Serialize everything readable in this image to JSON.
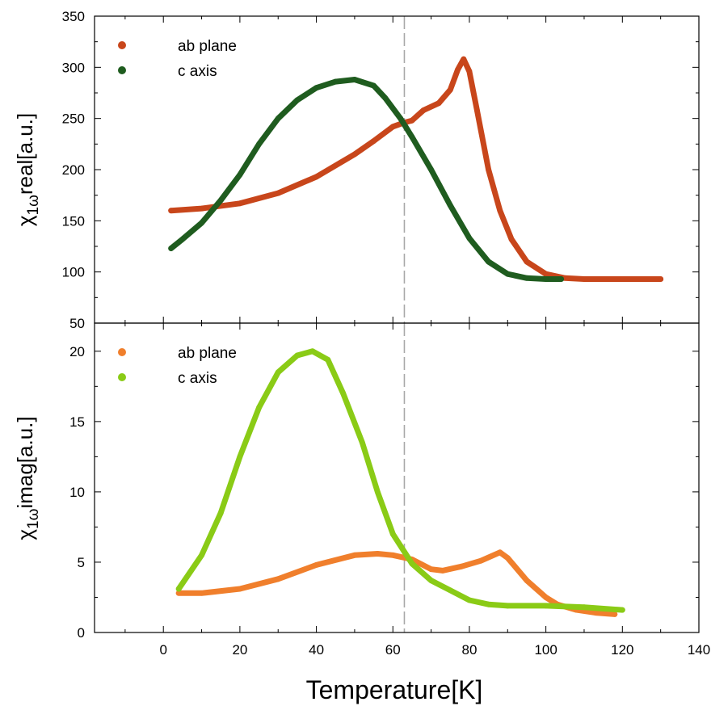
{
  "chart_data": [
    {
      "type": "scatter",
      "title": "",
      "xlabel": "Temperature[K]",
      "ylabel_main": "χ",
      "ylabel_sub": "1ω",
      "ylabel_tail": "real[a.u.]",
      "xlim": [
        -18,
        140
      ],
      "ylim": [
        50,
        350
      ],
      "x_ticks": [
        0,
        20,
        40,
        60,
        80,
        100,
        120,
        140
      ],
      "y_ticks": [
        50,
        100,
        150,
        200,
        250,
        300,
        350
      ],
      "legend_position": "top-left",
      "reference_line_x": 63,
      "series": [
        {
          "name": "ab plane",
          "color": "#c8461b",
          "points": [
            [
              2,
              160
            ],
            [
              10,
              162
            ],
            [
              20,
              167
            ],
            [
              30,
              177
            ],
            [
              40,
              193
            ],
            [
              50,
              215
            ],
            [
              55,
              228
            ],
            [
              60,
              242
            ],
            [
              63,
              246
            ],
            [
              65,
              248
            ],
            [
              68,
              258
            ],
            [
              72,
              265
            ],
            [
              75,
              278
            ],
            [
              77,
              298
            ],
            [
              78.5,
              308
            ],
            [
              80,
              296
            ],
            [
              82,
              258
            ],
            [
              85,
              200
            ],
            [
              88,
              160
            ],
            [
              91,
              132
            ],
            [
              95,
              110
            ],
            [
              100,
              98
            ],
            [
              105,
              94
            ],
            [
              110,
              93
            ],
            [
              120,
              93
            ],
            [
              130,
              93
            ]
          ]
        },
        {
          "name": "c axis",
          "color": "#1f5c1f",
          "points": [
            [
              2,
              123
            ],
            [
              5,
              132
            ],
            [
              10,
              148
            ],
            [
              15,
              170
            ],
            [
              20,
              195
            ],
            [
              25,
              225
            ],
            [
              30,
              250
            ],
            [
              35,
              268
            ],
            [
              40,
              280
            ],
            [
              45,
              286
            ],
            [
              50,
              288
            ],
            [
              55,
              282
            ],
            [
              58,
              270
            ],
            [
              62,
              250
            ],
            [
              65,
              232
            ],
            [
              70,
              200
            ],
            [
              75,
              165
            ],
            [
              80,
              133
            ],
            [
              85,
              110
            ],
            [
              90,
              98
            ],
            [
              95,
              94
            ],
            [
              100,
              93
            ],
            [
              104,
              93
            ]
          ]
        }
      ]
    },
    {
      "type": "scatter",
      "title": "",
      "xlabel": "Temperature[K]",
      "ylabel_main": "χ",
      "ylabel_sub": "1ω",
      "ylabel_tail": "imag[a.u.]",
      "xlim": [
        -18,
        140
      ],
      "ylim": [
        0,
        22
      ],
      "x_ticks": [
        0,
        20,
        40,
        60,
        80,
        100,
        120,
        140
      ],
      "y_ticks": [
        0,
        5,
        10,
        15,
        20
      ],
      "legend_position": "top-left",
      "reference_line_x": 63,
      "series": [
        {
          "name": "ab plane",
          "color": "#f07f2c",
          "points": [
            [
              4,
              2.8
            ],
            [
              10,
              2.8
            ],
            [
              20,
              3.1
            ],
            [
              30,
              3.8
            ],
            [
              40,
              4.8
            ],
            [
              50,
              5.5
            ],
            [
              56,
              5.6
            ],
            [
              60,
              5.5
            ],
            [
              65,
              5.2
            ],
            [
              70,
              4.5
            ],
            [
              73,
              4.4
            ],
            [
              78,
              4.7
            ],
            [
              83,
              5.1
            ],
            [
              88,
              5.7
            ],
            [
              90,
              5.3
            ],
            [
              95,
              3.7
            ],
            [
              100,
              2.5
            ],
            [
              103,
              2.0
            ],
            [
              108,
              1.6
            ],
            [
              113,
              1.4
            ],
            [
              118,
              1.3
            ]
          ]
        },
        {
          "name": "c axis",
          "color": "#8acb16",
          "points": [
            [
              4,
              3.1
            ],
            [
              10,
              5.5
            ],
            [
              15,
              8.5
            ],
            [
              20,
              12.5
            ],
            [
              25,
              16.0
            ],
            [
              30,
              18.5
            ],
            [
              35,
              19.7
            ],
            [
              39,
              20.0
            ],
            [
              43,
              19.4
            ],
            [
              47,
              17.0
            ],
            [
              52,
              13.5
            ],
            [
              56,
              10.0
            ],
            [
              60,
              7.0
            ],
            [
              65,
              4.9
            ],
            [
              70,
              3.7
            ],
            [
              75,
              3.0
            ],
            [
              80,
              2.3
            ],
            [
              85,
              2.0
            ],
            [
              90,
              1.9
            ],
            [
              100,
              1.9
            ],
            [
              110,
              1.8
            ],
            [
              120,
              1.6
            ]
          ]
        }
      ]
    }
  ]
}
